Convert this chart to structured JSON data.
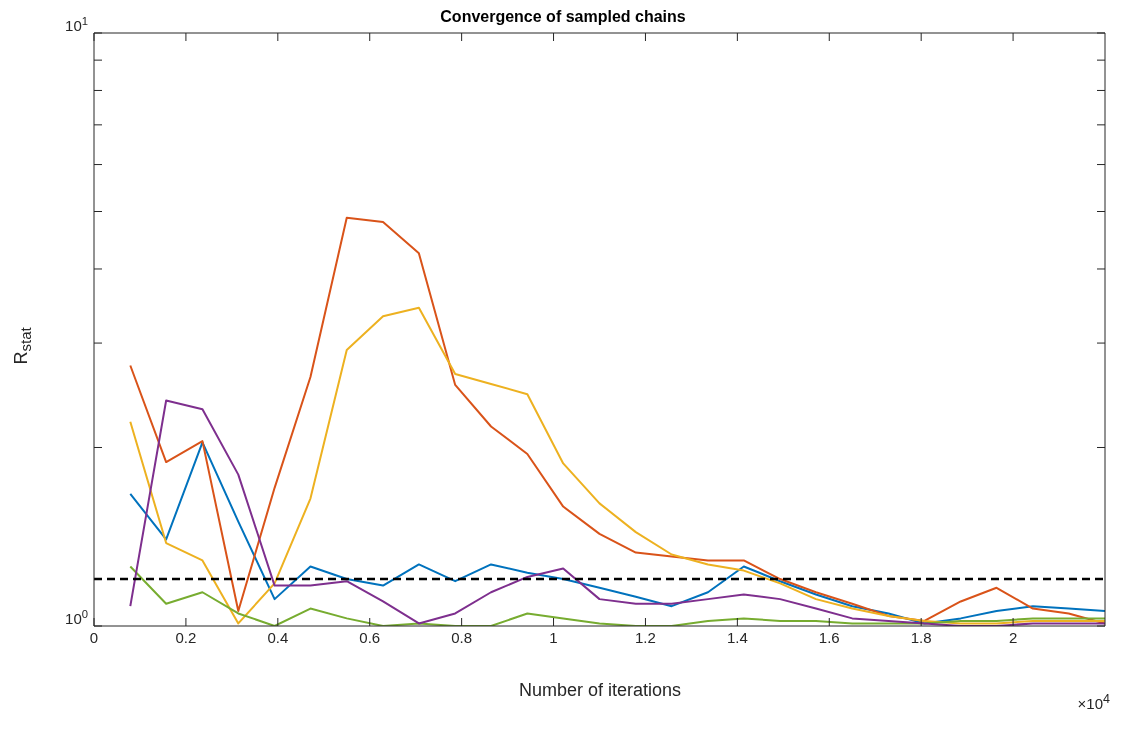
{
  "chart_data": {
    "type": "line",
    "title": "Convergence of sampled chains",
    "xlabel": "Number of iterations",
    "ylabel": "R$_{stat}$",
    "annotations": [
      "×10$^{4}$"
    ],
    "log": "y",
    "line_style": "solid",
    "x": [
      0.079,
      0.157,
      0.236,
      0.314,
      0.393,
      0.471,
      0.55,
      0.629,
      0.707,
      0.786,
      0.864,
      0.943,
      1.021,
      1.1,
      1.179,
      1.257,
      1.336,
      1.414,
      1.493,
      1.571,
      1.65,
      1.729,
      1.807,
      1.886,
      1.964,
      2.043,
      2.121,
      2.2
    ],
    "series": [
      {
        "color": "#0072bd",
        "values": [
          1.67,
          1.4,
          2.04,
          1.5,
          1.11,
          1.26,
          1.2,
          1.17,
          1.27,
          1.19,
          1.27,
          1.23,
          1.2,
          1.16,
          1.12,
          1.08,
          1.14,
          1.26,
          1.19,
          1.13,
          1.08,
          1.05,
          1.01,
          1.03,
          1.06,
          1.08,
          1.07,
          1.06
        ]
      },
      {
        "color": "#d95319",
        "values": [
          2.75,
          1.89,
          2.05,
          1.06,
          1.71,
          2.63,
          4.88,
          4.8,
          4.25,
          2.55,
          2.17,
          1.95,
          1.59,
          1.43,
          1.33,
          1.31,
          1.29,
          1.29,
          1.2,
          1.14,
          1.09,
          1.04,
          1.02,
          1.1,
          1.16,
          1.07,
          1.05,
          1.01
        ]
      },
      {
        "color": "#edb120",
        "values": [
          2.21,
          1.38,
          1.29,
          1.01,
          1.18,
          1.64,
          2.92,
          3.33,
          3.44,
          2.66,
          2.56,
          2.46,
          1.88,
          1.61,
          1.44,
          1.32,
          1.27,
          1.24,
          1.18,
          1.11,
          1.07,
          1.04,
          1.02,
          1.01,
          1.01,
          1.02,
          1.02,
          1.02
        ]
      },
      {
        "color": "#77ac30",
        "values": [
          1.26,
          1.09,
          1.14,
          1.05,
          1.0,
          1.07,
          1.03,
          1.0,
          1.01,
          1.0,
          1.0,
          1.05,
          1.03,
          1.01,
          1.0,
          1.0,
          1.02,
          1.03,
          1.02,
          1.02,
          1.01,
          1.01,
          1.01,
          1.02,
          1.02,
          1.03,
          1.03,
          1.03
        ]
      },
      {
        "color": "#7e2f8e",
        "values": [
          1.08,
          2.4,
          2.32,
          1.8,
          1.17,
          1.17,
          1.19,
          1.1,
          1.01,
          1.05,
          1.14,
          1.21,
          1.25,
          1.11,
          1.09,
          1.09,
          1.11,
          1.13,
          1.11,
          1.07,
          1.03,
          1.02,
          1.01,
          1.0,
          1.0,
          1.01,
          1.01,
          1.01
        ]
      }
    ],
    "ref_lines": [
      {
        "axis": "y",
        "value": 1.2,
        "color": "#000000",
        "line_style": "dashed"
      }
    ],
    "xlim": [
      0,
      2.2
    ],
    "xticks": [
      0,
      0.2,
      0.4,
      0.6,
      0.8,
      1,
      1.2,
      1.4,
      1.6,
      1.8,
      2
    ],
    "ylim": [
      1,
      10
    ],
    "yticks": [
      {
        "value": 1,
        "label": "10$^{0}$"
      },
      {
        "value": 2,
        "label": null
      },
      {
        "value": 3,
        "label": null
      },
      {
        "value": 4,
        "label": null
      },
      {
        "value": 5,
        "label": null
      },
      {
        "value": 6,
        "label": null
      },
      {
        "value": 7,
        "label": null
      },
      {
        "value": 8,
        "label": null
      },
      {
        "value": 9,
        "label": null
      },
      {
        "value": 10,
        "label": "10$^{1}$"
      }
    ],
    "grid": false,
    "legend": false
  }
}
